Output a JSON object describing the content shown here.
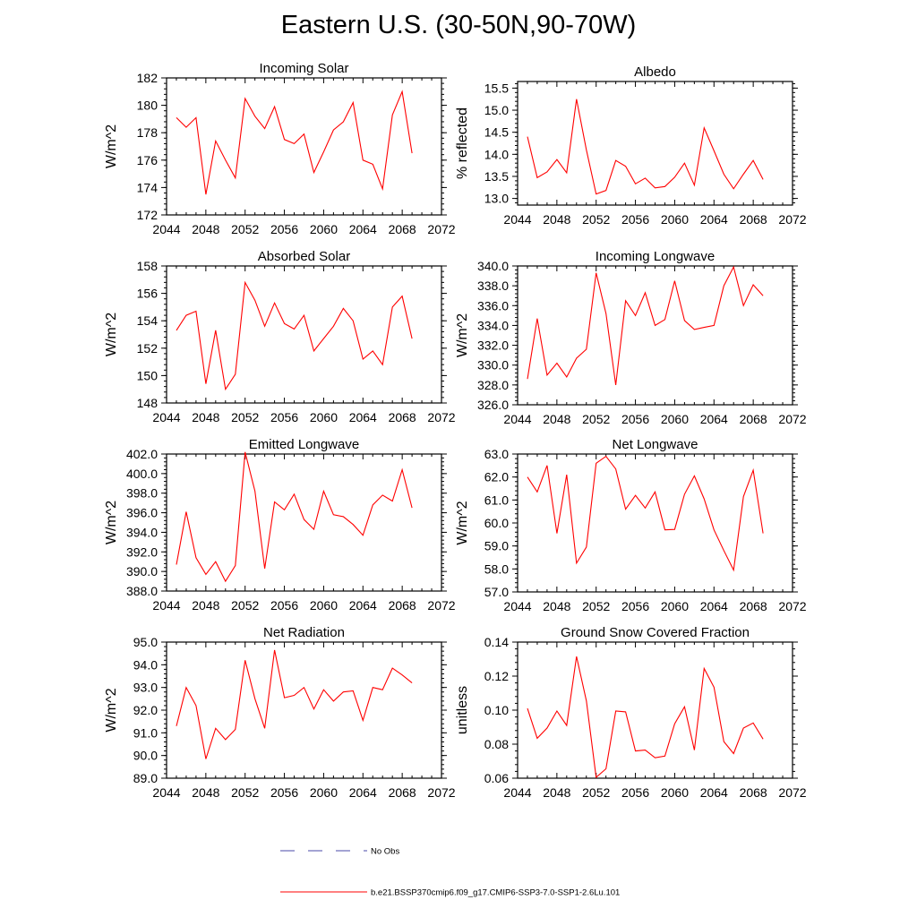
{
  "figure": {
    "title": "Eastern U.S. (30-50N,90-70W)",
    "colors": {
      "series": "#ff0000",
      "obs": "#4a4aa8",
      "axis": "#000000"
    },
    "legend": {
      "entries": [
        {
          "label": "No Obs",
          "style": "dashed",
          "color": "#4a4aa8"
        },
        {
          "label": "b.e21.BSSP370cmip6.f09_g17.CMIP6-SSP3-7.0-SSP1-2.6Lu.101",
          "style": "solid",
          "color": "#ff0000"
        }
      ]
    }
  },
  "chart_data": [
    {
      "type": "line",
      "title": "Incoming Solar",
      "ylabel": "W/m^2",
      "xlim": [
        2044,
        2072
      ],
      "xticks": [
        "2044",
        "2048",
        "2052",
        "2056",
        "2060",
        "2064",
        "2068",
        "2072"
      ],
      "ylim": [
        172,
        182
      ],
      "yticks": [
        "172",
        "174",
        "176",
        "178",
        "180",
        "182"
      ],
      "x": [
        2045,
        2046,
        2047,
        2048,
        2049,
        2050,
        2051,
        2052,
        2053,
        2054,
        2055,
        2056,
        2057,
        2058,
        2059,
        2060,
        2061,
        2062,
        2063,
        2064,
        2065,
        2066,
        2067,
        2068,
        2069
      ],
      "series": [
        {
          "name": "b.e21.BSSP370cmip6.f09_g17.CMIP6-SSP3-7.0-SSP1-2.6Lu.101",
          "values": [
            179.1,
            178.4,
            179.1,
            173.5,
            177.4,
            176.0,
            174.7,
            180.5,
            179.2,
            178.3,
            179.9,
            177.5,
            177.2,
            177.9,
            175.1,
            176.6,
            178.2,
            178.8,
            180.2,
            176.0,
            175.7,
            173.9,
            179.3,
            181.0,
            176.5
          ]
        }
      ]
    },
    {
      "type": "line",
      "title": "Albedo",
      "ylabel": "% reflected",
      "xlim": [
        2044,
        2072
      ],
      "xticks": [
        "2044",
        "2048",
        "2052",
        "2056",
        "2060",
        "2064",
        "2068",
        "2072"
      ],
      "ylim": [
        12.85,
        15.65
      ],
      "yticks": [
        "13.0",
        "13.5",
        "14.0",
        "14.5",
        "15.0",
        "15.5"
      ],
      "x": [
        2045,
        2046,
        2047,
        2048,
        2049,
        2050,
        2051,
        2052,
        2053,
        2054,
        2055,
        2056,
        2057,
        2058,
        2059,
        2060,
        2061,
        2062,
        2063,
        2064,
        2065,
        2066,
        2067,
        2068,
        2069
      ],
      "series": [
        {
          "name": "b.e21.BSSP370cmip6.f09_g17.CMIP6-SSP3-7.0-SSP1-2.6Lu.101",
          "values": [
            14.4,
            13.47,
            13.6,
            13.88,
            13.58,
            15.25,
            14.1,
            13.1,
            13.18,
            13.86,
            13.73,
            13.33,
            13.46,
            13.24,
            13.27,
            13.48,
            13.8,
            13.3,
            14.6,
            14.08,
            13.55,
            13.22,
            13.55,
            13.86,
            13.43
          ]
        }
      ]
    },
    {
      "type": "line",
      "title": "Absorbed Solar",
      "ylabel": "W/m^2",
      "xlim": [
        2044,
        2072
      ],
      "xticks": [
        "2044",
        "2048",
        "2052",
        "2056",
        "2060",
        "2064",
        "2068",
        "2072"
      ],
      "ylim": [
        148,
        158
      ],
      "yticks": [
        "148",
        "150",
        "152",
        "154",
        "156",
        "158"
      ],
      "x": [
        2045,
        2046,
        2047,
        2048,
        2049,
        2050,
        2051,
        2052,
        2053,
        2054,
        2055,
        2056,
        2057,
        2058,
        2059,
        2060,
        2061,
        2062,
        2063,
        2064,
        2065,
        2066,
        2067,
        2068,
        2069
      ],
      "series": [
        {
          "name": "b.e21.BSSP370cmip6.f09_g17.CMIP6-SSP3-7.0-SSP1-2.6Lu.101",
          "values": [
            153.3,
            154.4,
            154.7,
            149.4,
            153.3,
            149.0,
            150.1,
            156.8,
            155.5,
            153.6,
            155.3,
            153.8,
            153.4,
            154.4,
            151.8,
            152.7,
            153.6,
            154.9,
            154.0,
            151.2,
            151.8,
            150.8,
            155.0,
            155.8,
            152.7
          ]
        }
      ]
    },
    {
      "type": "line",
      "title": "Incoming Longwave",
      "ylabel": "W/m^2",
      "xlim": [
        2044,
        2072
      ],
      "xticks": [
        "2044",
        "2048",
        "2052",
        "2056",
        "2060",
        "2064",
        "2068",
        "2072"
      ],
      "ylim": [
        326,
        340
      ],
      "yticks": [
        "326.0",
        "328.0",
        "330.0",
        "332.0",
        "334.0",
        "336.0",
        "338.0",
        "340.0"
      ],
      "x": [
        2045,
        2046,
        2047,
        2048,
        2049,
        2050,
        2051,
        2052,
        2053,
        2054,
        2055,
        2056,
        2057,
        2058,
        2059,
        2060,
        2061,
        2062,
        2063,
        2064,
        2065,
        2066,
        2067,
        2068,
        2069
      ],
      "series": [
        {
          "name": "b.e21.BSSP370cmip6.f09_g17.CMIP6-SSP3-7.0-SSP1-2.6Lu.101",
          "values": [
            328.6,
            334.7,
            329.0,
            330.2,
            328.8,
            330.7,
            331.6,
            339.3,
            335.2,
            328.0,
            336.5,
            335.0,
            337.3,
            334.0,
            334.6,
            338.5,
            334.5,
            333.6,
            333.8,
            334.0,
            338.0,
            339.9,
            336.0,
            338.1,
            337.0
          ]
        }
      ]
    },
    {
      "type": "line",
      "title": "Emitted Longwave",
      "ylabel": "W/m^2",
      "xlim": [
        2044,
        2072
      ],
      "xticks": [
        "2044",
        "2048",
        "2052",
        "2056",
        "2060",
        "2064",
        "2068",
        "2072"
      ],
      "ylim": [
        388,
        402
      ],
      "yticks": [
        "388.0",
        "390.0",
        "392.0",
        "394.0",
        "396.0",
        "398.0",
        "400.0",
        "402.0"
      ],
      "x": [
        2045,
        2046,
        2047,
        2048,
        2049,
        2050,
        2051,
        2052,
        2053,
        2054,
        2055,
        2056,
        2057,
        2058,
        2059,
        2060,
        2061,
        2062,
        2063,
        2064,
        2065,
        2066,
        2067,
        2068,
        2069
      ],
      "series": [
        {
          "name": "b.e21.BSSP370cmip6.f09_g17.CMIP6-SSP3-7.0-SSP1-2.6Lu.101",
          "values": [
            390.7,
            396.1,
            391.4,
            389.7,
            391.0,
            389.0,
            390.6,
            402.2,
            398.2,
            390.3,
            397.1,
            396.3,
            397.9,
            395.3,
            394.3,
            398.2,
            395.8,
            395.6,
            394.8,
            393.7,
            396.8,
            397.8,
            397.2,
            400.4,
            396.5
          ]
        }
      ]
    },
    {
      "type": "line",
      "title": "Net Longwave",
      "ylabel": "W/m^2",
      "xlim": [
        2044,
        2072
      ],
      "xticks": [
        "2044",
        "2048",
        "2052",
        "2056",
        "2060",
        "2064",
        "2068",
        "2072"
      ],
      "ylim": [
        57,
        63
      ],
      "yticks": [
        "57.0",
        "58.0",
        "59.0",
        "60.0",
        "61.0",
        "62.0",
        "63.0"
      ],
      "x": [
        2045,
        2046,
        2047,
        2048,
        2049,
        2050,
        2051,
        2052,
        2053,
        2054,
        2055,
        2056,
        2057,
        2058,
        2059,
        2060,
        2061,
        2062,
        2063,
        2064,
        2065,
        2066,
        2067,
        2068,
        2069
      ],
      "series": [
        {
          "name": "b.e21.BSSP370cmip6.f09_g17.CMIP6-SSP3-7.0-SSP1-2.6Lu.101",
          "values": [
            62.0,
            61.35,
            62.5,
            59.55,
            62.1,
            58.25,
            58.95,
            62.6,
            62.9,
            62.35,
            60.6,
            61.2,
            60.65,
            61.35,
            59.7,
            59.72,
            61.25,
            62.05,
            61.05,
            59.7,
            58.8,
            57.95,
            61.15,
            62.3,
            59.55
          ]
        }
      ]
    },
    {
      "type": "line",
      "title": "Net Radiation",
      "ylabel": "W/m^2",
      "xlim": [
        2044,
        2072
      ],
      "xticks": [
        "2044",
        "2048",
        "2052",
        "2056",
        "2060",
        "2064",
        "2068",
        "2072"
      ],
      "ylim": [
        89,
        95
      ],
      "yticks": [
        "89.0",
        "90.0",
        "91.0",
        "92.0",
        "93.0",
        "94.0",
        "95.0"
      ],
      "x": [
        2045,
        2046,
        2047,
        2048,
        2049,
        2050,
        2051,
        2052,
        2053,
        2054,
        2055,
        2056,
        2057,
        2058,
        2059,
        2060,
        2061,
        2062,
        2063,
        2064,
        2065,
        2066,
        2067,
        2068,
        2069
      ],
      "series": [
        {
          "name": "b.e21.BSSP370cmip6.f09_g17.CMIP6-SSP3-7.0-SSP1-2.6Lu.101",
          "values": [
            91.3,
            93.0,
            92.2,
            89.85,
            91.2,
            90.7,
            91.15,
            94.2,
            92.5,
            91.2,
            94.65,
            92.55,
            92.65,
            93.0,
            92.05,
            92.9,
            92.4,
            92.8,
            92.85,
            91.55,
            93.0,
            92.9,
            93.85,
            93.55,
            93.2
          ]
        }
      ]
    },
    {
      "type": "line",
      "title": "Ground Snow Covered Fraction",
      "ylabel": "unitless",
      "xlim": [
        2044,
        2072
      ],
      "xticks": [
        "2044",
        "2048",
        "2052",
        "2056",
        "2060",
        "2064",
        "2068",
        "2072"
      ],
      "ylim": [
        0.06,
        0.14
      ],
      "yticks": [
        "0.06",
        "0.08",
        "0.10",
        "0.12",
        "0.14"
      ],
      "x": [
        2045,
        2046,
        2047,
        2048,
        2049,
        2050,
        2051,
        2052,
        2053,
        2054,
        2055,
        2056,
        2057,
        2058,
        2059,
        2060,
        2061,
        2062,
        2063,
        2064,
        2065,
        2066,
        2067,
        2068,
        2069
      ],
      "series": [
        {
          "name": "b.e21.BSSP370cmip6.f09_g17.CMIP6-SSP3-7.0-SSP1-2.6Lu.101",
          "values": [
            0.101,
            0.0835,
            0.0895,
            0.0995,
            0.091,
            0.1315,
            0.1055,
            0.0605,
            0.0655,
            0.0995,
            0.099,
            0.076,
            0.0765,
            0.072,
            0.073,
            0.092,
            0.102,
            0.0765,
            0.1245,
            0.1135,
            0.0815,
            0.0745,
            0.0895,
            0.0925,
            0.083
          ]
        }
      ]
    }
  ]
}
